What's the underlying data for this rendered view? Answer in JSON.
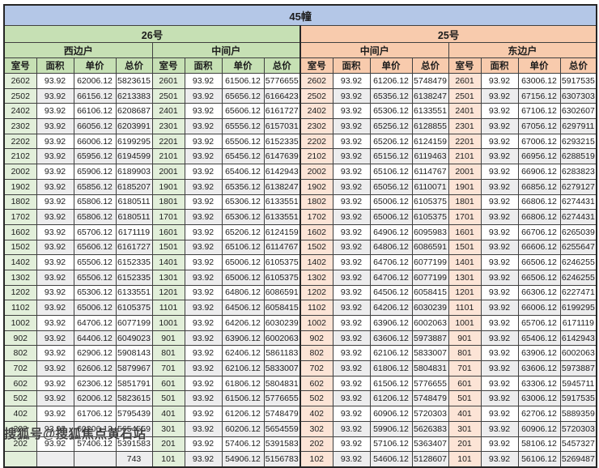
{
  "chart_data": {
    "type": "table",
    "title": "45幢",
    "groups": [
      {
        "label": "26号",
        "unit_types": [
          "西边户",
          "中间户"
        ]
      },
      {
        "label": "25号",
        "unit_types": [
          "中间户",
          "东边户"
        ]
      }
    ],
    "columns": [
      "室号",
      "面积",
      "单价",
      "总价"
    ],
    "rows": [
      [
        "2602",
        "93.92",
        "62006.12",
        "5823615",
        "2601",
        "93.92",
        "61506.12",
        "5776655",
        "2602",
        "93.92",
        "61206.12",
        "5748479",
        "2601",
        "93.92",
        "63006.12",
        "5917535"
      ],
      [
        "2502",
        "93.92",
        "66156.12",
        "6213383",
        "2501",
        "93.92",
        "65656.12",
        "6166423",
        "2502",
        "93.92",
        "65356.12",
        "6138247",
        "2501",
        "93.92",
        "67156.12",
        "6307303"
      ],
      [
        "2402",
        "93.92",
        "66106.12",
        "6208687",
        "2401",
        "93.92",
        "65606.12",
        "6161727",
        "2402",
        "93.92",
        "65306.12",
        "6133551",
        "2401",
        "93.92",
        "67106.12",
        "6302607"
      ],
      [
        "2302",
        "93.92",
        "66056.12",
        "6203991",
        "2301",
        "93.92",
        "65556.12",
        "6157031",
        "2302",
        "93.92",
        "65256.12",
        "6128855",
        "2301",
        "93.92",
        "67056.12",
        "6297911"
      ],
      [
        "2202",
        "93.92",
        "66006.12",
        "6199295",
        "2201",
        "93.92",
        "65506.12",
        "6152335",
        "2202",
        "93.92",
        "65206.12",
        "6124159",
        "2201",
        "93.92",
        "67006.12",
        "6293215"
      ],
      [
        "2102",
        "93.92",
        "65956.12",
        "6194599",
        "2101",
        "93.92",
        "65456.12",
        "6147639",
        "2102",
        "93.92",
        "65156.12",
        "6119463",
        "2101",
        "93.92",
        "66956.12",
        "6288519"
      ],
      [
        "2002",
        "93.92",
        "65906.12",
        "6189903",
        "2001",
        "93.92",
        "65406.12",
        "6142943",
        "2002",
        "93.92",
        "65106.12",
        "6114767",
        "2001",
        "93.92",
        "66906.12",
        "6283823"
      ],
      [
        "1902",
        "93.92",
        "65856.12",
        "6185207",
        "1901",
        "93.92",
        "65356.12",
        "6138247",
        "1902",
        "93.92",
        "65056.12",
        "6110071",
        "1901",
        "93.92",
        "66856.12",
        "6279127"
      ],
      [
        "1802",
        "93.92",
        "65806.12",
        "6180511",
        "1801",
        "93.92",
        "65306.12",
        "6133551",
        "1802",
        "93.92",
        "65006.12",
        "6105375",
        "1801",
        "93.92",
        "66806.12",
        "6274431"
      ],
      [
        "1702",
        "93.92",
        "65806.12",
        "6180511",
        "1701",
        "93.92",
        "65306.12",
        "6133551",
        "1702",
        "93.92",
        "65006.12",
        "6105375",
        "1701",
        "93.92",
        "66806.12",
        "6274431"
      ],
      [
        "1602",
        "93.92",
        "65706.12",
        "6171119",
        "1601",
        "93.92",
        "65206.12",
        "6124159",
        "1602",
        "93.92",
        "64906.12",
        "6095983",
        "1601",
        "93.92",
        "66706.12",
        "6265039"
      ],
      [
        "1502",
        "93.92",
        "65606.12",
        "6161727",
        "1501",
        "93.92",
        "65106.12",
        "6114767",
        "1502",
        "93.92",
        "64806.12",
        "6086591",
        "1501",
        "93.92",
        "66606.12",
        "6255647"
      ],
      [
        "1402",
        "93.92",
        "65506.12",
        "6152335",
        "1401",
        "93.92",
        "65006.12",
        "6105375",
        "1402",
        "93.92",
        "64706.12",
        "6077199",
        "1401",
        "93.92",
        "66506.12",
        "6246255"
      ],
      [
        "1302",
        "93.92",
        "65506.12",
        "6152335",
        "1301",
        "93.92",
        "65006.12",
        "6105375",
        "1302",
        "93.92",
        "64706.12",
        "6077199",
        "1301",
        "93.92",
        "66506.12",
        "6246255"
      ],
      [
        "1202",
        "93.92",
        "65306.12",
        "6133551",
        "1201",
        "93.92",
        "64806.12",
        "6086591",
        "1202",
        "93.92",
        "64506.12",
        "6058415",
        "1201",
        "93.92",
        "66306.12",
        "6227471"
      ],
      [
        "1102",
        "93.92",
        "65006.12",
        "6105375",
        "1101",
        "93.92",
        "64506.12",
        "6058415",
        "1102",
        "93.92",
        "64206.12",
        "6030239",
        "1101",
        "93.92",
        "66006.12",
        "6199295"
      ],
      [
        "1002",
        "93.92",
        "64706.12",
        "6077199",
        "1001",
        "93.92",
        "64206.12",
        "6030239",
        "1002",
        "93.92",
        "63906.12",
        "6002063",
        "1001",
        "93.92",
        "65706.12",
        "6171119"
      ],
      [
        "902",
        "93.92",
        "64406.12",
        "6049023",
        "901",
        "93.92",
        "63906.12",
        "6002063",
        "902",
        "93.92",
        "63606.12",
        "5973887",
        "901",
        "93.92",
        "65406.12",
        "6142943"
      ],
      [
        "802",
        "93.92",
        "62906.12",
        "5908143",
        "801",
        "93.92",
        "62406.12",
        "5861183",
        "802",
        "93.92",
        "62106.12",
        "5833007",
        "801",
        "93.92",
        "63906.12",
        "6002063"
      ],
      [
        "702",
        "93.92",
        "62606.12",
        "5879967",
        "701",
        "93.92",
        "62106.12",
        "5833007",
        "702",
        "93.92",
        "61806.12",
        "5804831",
        "701",
        "93.92",
        "63606.12",
        "5973887"
      ],
      [
        "602",
        "93.92",
        "62306.12",
        "5851791",
        "601",
        "93.92",
        "61806.12",
        "5804831",
        "602",
        "93.92",
        "61506.12",
        "5776655",
        "601",
        "93.92",
        "63306.12",
        "5945711"
      ],
      [
        "502",
        "93.92",
        "62006.12",
        "5823615",
        "501",
        "93.92",
        "61506.12",
        "5776655",
        "502",
        "93.92",
        "61206.12",
        "5748479",
        "501",
        "93.92",
        "63006.12",
        "5917535"
      ],
      [
        "402",
        "93.92",
        "61706.12",
        "5795439",
        "401",
        "93.92",
        "61206.12",
        "5748479",
        "402",
        "93.92",
        "60906.12",
        "5720303",
        "401",
        "93.92",
        "62706.12",
        "5889359"
      ],
      [
        "302",
        "93.92",
        "60206.12",
        "5654559",
        "301",
        "93.92",
        "60206.12",
        "5654559",
        "302",
        "93.92",
        "59906.12",
        "5626383",
        "301",
        "93.92",
        "60906.12",
        "5720303"
      ],
      [
        "202",
        "93.92",
        "57406.12",
        "5391583",
        "201",
        "93.92",
        "57406.12",
        "5391583",
        "202",
        "93.92",
        "57106.12",
        "5363407",
        "201",
        "93.92",
        "58106.12",
        "5457327"
      ],
      [
        "",
        "",
        "",
        "743",
        "101",
        "93.92",
        "54906.12",
        "5156783",
        "102",
        "93.92",
        "54606.12",
        "5128607",
        "101",
        "93.92",
        "56106.12",
        "5269487"
      ]
    ]
  },
  "watermark": {
    "text": "搜狐号@搜狐焦点黄石站"
  },
  "colors": {
    "title_bg": "#b4c7e7",
    "green_header": "#c6e0b4",
    "green_room_cell": "#e2efda",
    "orange_header": "#f8cbad",
    "orange_room_cell": "#fce4d6",
    "row_stripe": "#ededee",
    "grid_line": "#404040"
  }
}
